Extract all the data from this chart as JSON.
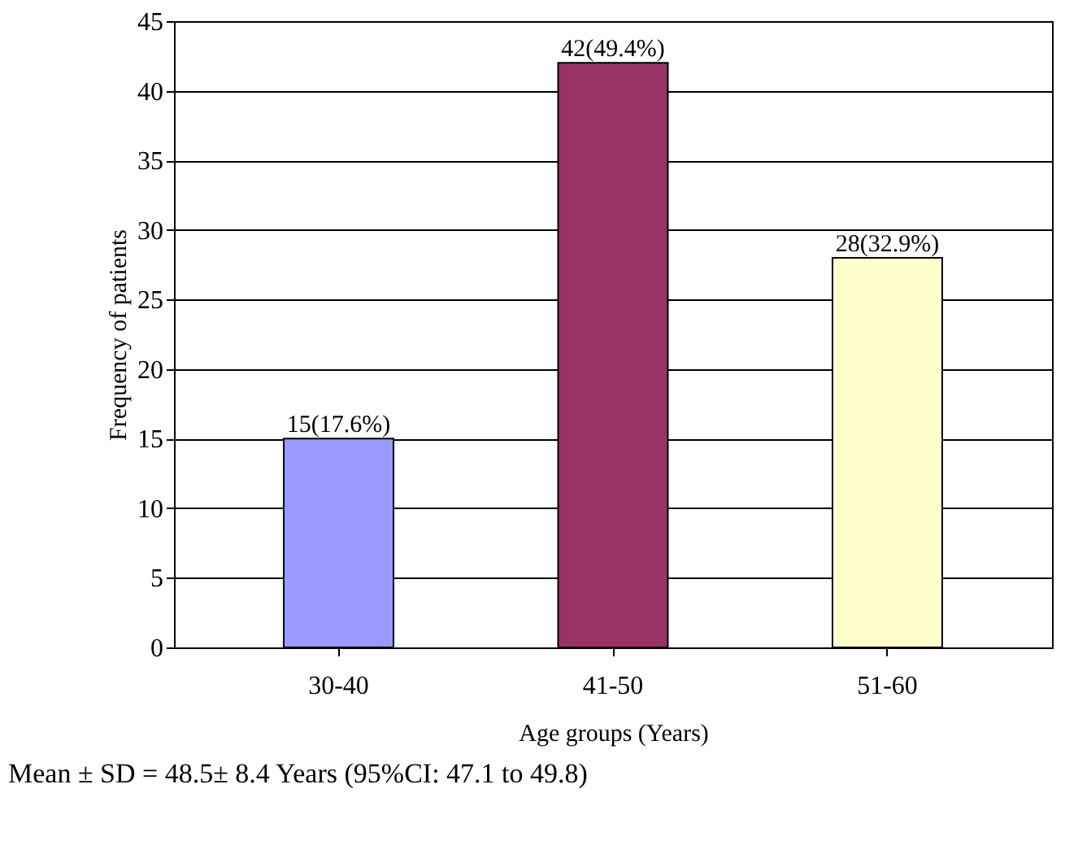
{
  "chart_data": {
    "type": "bar",
    "xlabel": "Age groups (Years)",
    "ylabel": "Frequency of patients",
    "categories": [
      "30-40",
      "41-50",
      "51-60"
    ],
    "values": [
      15,
      42,
      28
    ],
    "colors": [
      "#9999ff",
      "#993366",
      "#ffffcc"
    ],
    "value_labels": [
      "15(17.6%)",
      "42(49.4%)",
      "28(32.9%)"
    ],
    "ylim": [
      0,
      45
    ],
    "yticks": [
      0,
      5,
      10,
      15,
      20,
      25,
      30,
      35,
      40,
      45
    ],
    "grid": "y",
    "annotations": [
      "Mean ± SD = 48.5± 8.4 Years (95%CI: 47.1 to 49.8)"
    ]
  }
}
